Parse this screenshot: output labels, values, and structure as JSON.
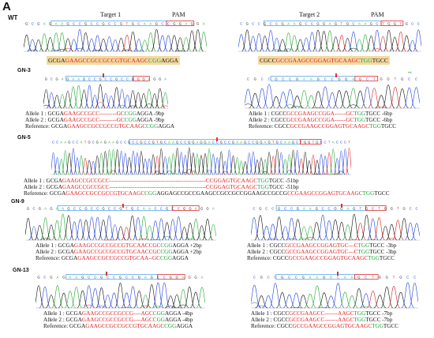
{
  "panel_letter": "A",
  "headers": {
    "target1": "Target 1",
    "pam1": "PAM",
    "target2": "Target 2",
    "pam2": "PAM"
  },
  "samples": {
    "wt": "WT",
    "gn3": "GN-3",
    "gn5": "GN-5",
    "gn9": "GN-9",
    "gn13": "GN-13"
  },
  "seqs": {
    "wt_l": "GCGAGAAGCCGCCGCCGTGCAAGCCGGAGGA",
    "wt_r": "CGCCGCCGAAGCCGGAGTGCAAGCTGGTGCC",
    "gn3_l": "GCGAGAAGCCGCCGCCGGGAGGA",
    "gn3_r": "CGCCGCCGAAGCCGGAGCTGGTGCC",
    "gn5": "CCAAGCCATGCGAGAAGCCGCCGCCGTGCAAGCCGGAGGACCGCCGAAGCCGGAGTGCAAGCTGGTGCCTACCCT",
    "gn9_l": "GCGAGAAGCCGCCGCCGTGCAACCGCCGGAGGA",
    "gn9_r": "CGCCGCCGAAGCCGGAGTGCTGGTGCC",
    "gn13_l": "GCGAGAAGCCGCCGCCGAGCCGGAGGA",
    "gn13_r": "CGCCGCCGAAGCCAAGCTGGTGCC"
  },
  "wt_boxes": {
    "left": [
      {
        "t": "GCGA",
        "c": "k"
      },
      {
        "t": "GAAGCCGCCGCCGTGCAAGC",
        "c": "r"
      },
      {
        "t": "CGG",
        "c": "g"
      },
      {
        "t": "AGGA",
        "c": "k"
      }
    ],
    "right": [
      {
        "t": "CGCC",
        "c": "k"
      },
      {
        "t": "GCCGAAGCCGGAGTGCAAGC",
        "c": "r"
      },
      {
        "t": "TGG",
        "c": "g"
      },
      {
        "t": "TGCC",
        "c": "k"
      }
    ]
  },
  "annotations": {
    "gn3_l": [
      {
        "label": "Allele 1 :",
        "segs": [
          {
            "t": "GCGA",
            "c": "k"
          },
          {
            "t": "GAAGCCGCC",
            "c": "r"
          },
          {
            "t": "---------",
            "c": "r"
          },
          {
            "t": "GC",
            "c": "r"
          },
          {
            "t": "CGG",
            "c": "g"
          },
          {
            "t": "AGGA",
            "c": "k"
          }
        ],
        "note": "-9bp"
      },
      {
        "label": "Allele 2 :",
        "segs": [
          {
            "t": "GCGA",
            "c": "k"
          },
          {
            "t": "GAAGCCGCC",
            "c": "r"
          },
          {
            "t": "---------",
            "c": "r"
          },
          {
            "t": "GC",
            "c": "r"
          },
          {
            "t": "CGG",
            "c": "g"
          },
          {
            "t": "AGGA",
            "c": "k"
          }
        ],
        "note": "-9bp"
      },
      {
        "label": "Reference:",
        "segs": [
          {
            "t": "GCGA",
            "c": "k"
          },
          {
            "t": "GAAGCCGCCGCCGTGCAAGC",
            "c": "r"
          },
          {
            "t": "CGG",
            "c": "g"
          },
          {
            "t": "AGGA",
            "c": "k"
          }
        ],
        "note": ""
      }
    ],
    "gn3_r": [
      {
        "label": "Allele 1 :",
        "segs": [
          {
            "t": "CGCC",
            "c": "k"
          },
          {
            "t": "GCCGAAGCCGGA",
            "c": "r"
          },
          {
            "t": "------",
            "c": "r"
          },
          {
            "t": "GC",
            "c": "r"
          },
          {
            "t": "TGG",
            "c": "g"
          },
          {
            "t": "TGCC",
            "c": "k"
          }
        ],
        "note": "-6bp"
      },
      {
        "label": "Allele 2 :",
        "segs": [
          {
            "t": "CGCC",
            "c": "k"
          },
          {
            "t": "GCCGAAGCCGGA",
            "c": "r"
          },
          {
            "t": "------",
            "c": "r"
          },
          {
            "t": "GC",
            "c": "r"
          },
          {
            "t": "TGG",
            "c": "g"
          },
          {
            "t": "TGCC",
            "c": "k"
          }
        ],
        "note": "-6bp"
      },
      {
        "label": "Reference:",
        "segs": [
          {
            "t": "CGCC",
            "c": "k"
          },
          {
            "t": "GCCGAAGCCGGAGTGCAAGC",
            "c": "r"
          },
          {
            "t": "TGG",
            "c": "g"
          },
          {
            "t": "TGCC",
            "c": "k"
          }
        ],
        "note": ""
      }
    ],
    "gn5": [
      {
        "label": "Allele 1 :",
        "segs": [
          {
            "t": "GCGA",
            "c": "k"
          },
          {
            "t": "GAAGCCGCCGCC",
            "c": "r"
          },
          {
            "t": "---------------------------------------------------",
            "c": "r"
          },
          {
            "t": "CCGGAGTGCAAGC",
            "c": "r"
          },
          {
            "t": "TGG",
            "c": "g"
          },
          {
            "t": "TGCC",
            "c": "k"
          }
        ],
        "note": "-51bp"
      },
      {
        "label": "Allele 2 :",
        "segs": [
          {
            "t": "GCGA",
            "c": "k"
          },
          {
            "t": "GAAGCCGCCGCC",
            "c": "r"
          },
          {
            "t": "---------------------------------------------------",
            "c": "r"
          },
          {
            "t": "CCGGAGTGCAAGC",
            "c": "r"
          },
          {
            "t": "TGG",
            "c": "g"
          },
          {
            "t": "TGCC",
            "c": "k"
          }
        ],
        "note": "-51bp"
      },
      {
        "label": "Reference:",
        "segs": [
          {
            "t": "GCGA",
            "c": "k"
          },
          {
            "t": "GAAGCCGCCGCCGTGCAAGC",
            "c": "r"
          },
          {
            "t": "CGG",
            "c": "g"
          },
          {
            "t": "AGGAGCCGCCGAAGCCGCCGCCGGAAGCCGCCG",
            "c": "k"
          },
          {
            "t": "CCGAAGCCGGAGTGCAAGC",
            "c": "r"
          },
          {
            "t": "TGG",
            "c": "g"
          },
          {
            "t": "TGCC",
            "c": "k"
          }
        ],
        "note": ""
      }
    ],
    "gn9_l": [
      {
        "label": "Allele 1 :",
        "segs": [
          {
            "t": "GCGA",
            "c": "k"
          },
          {
            "t": "GAAGCCGCCGCCGTGCAACCGC",
            "c": "r"
          },
          {
            "t": "CGG",
            "c": "g"
          },
          {
            "t": "AGGA",
            "c": "k"
          }
        ],
        "note": "+2bp"
      },
      {
        "label": "Allele 2 :",
        "segs": [
          {
            "t": "GCGA",
            "c": "k"
          },
          {
            "t": "GAAGCCGCCGCCGTGCAACCGC",
            "c": "r"
          },
          {
            "t": "CGG",
            "c": "g"
          },
          {
            "t": "AGGA",
            "c": "k"
          }
        ],
        "note": "+2bp"
      },
      {
        "label": "Reference:",
        "segs": [
          {
            "t": "GCGA",
            "c": "k"
          },
          {
            "t": "GAAGCCGCCGCCGTGCAA",
            "c": "r"
          },
          {
            "t": "--",
            "c": "r"
          },
          {
            "t": "GC",
            "c": "r"
          },
          {
            "t": "CGG",
            "c": "g"
          },
          {
            "t": "AGGA",
            "c": "k"
          }
        ],
        "note": ""
      }
    ],
    "gn9_r": [
      {
        "label": "Allele 1 :",
        "segs": [
          {
            "t": "CGCC",
            "c": "k"
          },
          {
            "t": "GCCGAAGCCGGAGTGC",
            "c": "r"
          },
          {
            "t": "---",
            "c": "r"
          },
          {
            "t": "C",
            "c": "r"
          },
          {
            "t": "TGG",
            "c": "g"
          },
          {
            "t": "TGCC",
            "c": "k"
          }
        ],
        "note": "-3bp"
      },
      {
        "label": "Allele 2 :",
        "segs": [
          {
            "t": "CGCC",
            "c": "k"
          },
          {
            "t": "GCCGAAGCCGGAGTGC",
            "c": "r"
          },
          {
            "t": "---",
            "c": "r"
          },
          {
            "t": "C",
            "c": "r"
          },
          {
            "t": "TGG",
            "c": "g"
          },
          {
            "t": "TGCC",
            "c": "k"
          }
        ],
        "note": "-3bp"
      },
      {
        "label": "Reference:",
        "segs": [
          {
            "t": "CGCC",
            "c": "k"
          },
          {
            "t": "GCCGAAGCCGGAGTGCAAGC",
            "c": "r"
          },
          {
            "t": "TGG",
            "c": "g"
          },
          {
            "t": "TGCC",
            "c": "k"
          }
        ],
        "note": ""
      }
    ],
    "gn13_l": [
      {
        "label": "Allele 1 :",
        "segs": [
          {
            "t": "GCGA",
            "c": "k"
          },
          {
            "t": "GAAGCCGCCGCCG",
            "c": "r"
          },
          {
            "t": "----",
            "c": "r"
          },
          {
            "t": "AGC",
            "c": "r"
          },
          {
            "t": "CGG",
            "c": "g"
          },
          {
            "t": "AGGA",
            "c": "k"
          }
        ],
        "note": "-4bp"
      },
      {
        "label": "Allele 2 :",
        "segs": [
          {
            "t": "GCGA",
            "c": "k"
          },
          {
            "t": "GAAGCCGCCGCCG",
            "c": "r"
          },
          {
            "t": "----",
            "c": "r"
          },
          {
            "t": "AGC",
            "c": "r"
          },
          {
            "t": "CGG",
            "c": "g"
          },
          {
            "t": "AGGA",
            "c": "k"
          }
        ],
        "note": "-4bp"
      },
      {
        "label": "Reference:",
        "segs": [
          {
            "t": "GCGA",
            "c": "k"
          },
          {
            "t": "GAAGCCGCCGCCGTGCAAGC",
            "c": "r"
          },
          {
            "t": "CGG",
            "c": "g"
          },
          {
            "t": "AGGA",
            "c": "k"
          }
        ],
        "note": ""
      }
    ],
    "gn13_r": [
      {
        "label": "Allele 1 :",
        "segs": [
          {
            "t": "CGCC",
            "c": "k"
          },
          {
            "t": "GCCGAAGCC",
            "c": "r"
          },
          {
            "t": "-------",
            "c": "r"
          },
          {
            "t": "AAGC",
            "c": "r"
          },
          {
            "t": "TGG",
            "c": "g"
          },
          {
            "t": "TGCC",
            "c": "k"
          }
        ],
        "note": "-7bp"
      },
      {
        "label": "Allele 2 :",
        "segs": [
          {
            "t": "CGCC",
            "c": "k"
          },
          {
            "t": "GCCGAAGCC",
            "c": "r"
          },
          {
            "t": "-------",
            "c": "r"
          },
          {
            "t": "AAGC",
            "c": "r"
          },
          {
            "t": "TGG",
            "c": "g"
          },
          {
            "t": "TGCC",
            "c": "k"
          }
        ],
        "note": "-7bp"
      },
      {
        "label": "Reference:",
        "segs": [
          {
            "t": "CGCC",
            "c": "k"
          },
          {
            "t": "GCCGAAGCCGGAGTGCAAGC",
            "c": "r"
          },
          {
            "t": "TGG",
            "c": "g"
          },
          {
            "t": "TGCC",
            "c": "k"
          }
        ],
        "note": ""
      }
    ]
  }
}
